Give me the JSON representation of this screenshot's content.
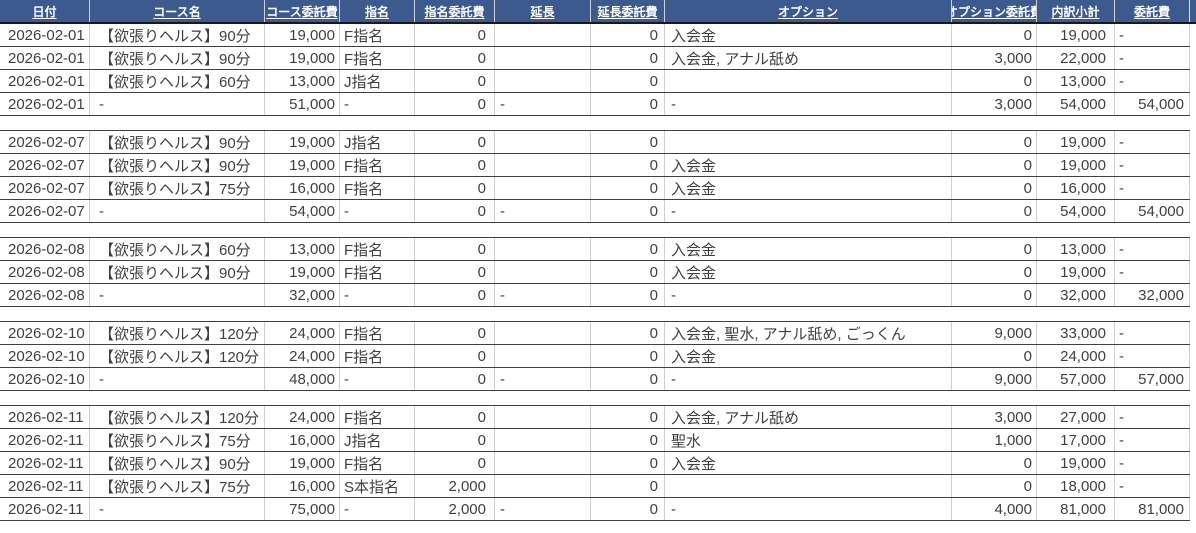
{
  "table": {
    "columns": [
      {
        "key": "date",
        "label": "日付"
      },
      {
        "key": "course-name",
        "label": "コース名"
      },
      {
        "key": "course-fee",
        "label": "コース委託費"
      },
      {
        "key": "nomination",
        "label": "指名"
      },
      {
        "key": "nomination-fee",
        "label": "指名委託費"
      },
      {
        "key": "extension",
        "label": "延長"
      },
      {
        "key": "extension-fee",
        "label": "延長委託費"
      },
      {
        "key": "option",
        "label": "オプション"
      },
      {
        "key": "option-fee",
        "label": "オプション委託費"
      },
      {
        "key": "breakdown-subtotal",
        "label": "内訳小計"
      },
      {
        "key": "commission-fee",
        "label": "委託費"
      }
    ],
    "groups": [
      {
        "rows": [
          [
            "2026-02-01",
            "【欲張りヘルス】90分",
            "19,000",
            "F指名",
            "0",
            "",
            "0",
            "入会金",
            "0",
            "19,000",
            "-"
          ],
          [
            "2026-02-01",
            "【欲張りヘルス】90分",
            "19,000",
            "F指名",
            "0",
            "",
            "0",
            "入会金, アナル舐め",
            "3,000",
            "22,000",
            "-"
          ],
          [
            "2026-02-01",
            "【欲張りヘルス】60分",
            "13,000",
            "J指名",
            "0",
            "",
            "0",
            "",
            "0",
            "13,000",
            "-"
          ]
        ],
        "subtotal": [
          "2026-02-01",
          "-",
          "51,000",
          "-",
          "0",
          "-",
          "0",
          "-",
          "3,000",
          "54,000",
          "54,000"
        ]
      },
      {
        "rows": [
          [
            "2026-02-07",
            "【欲張りヘルス】90分",
            "19,000",
            "J指名",
            "0",
            "",
            "0",
            "",
            "0",
            "19,000",
            "-"
          ],
          [
            "2026-02-07",
            "【欲張りヘルス】90分",
            "19,000",
            "F指名",
            "0",
            "",
            "0",
            "入会金",
            "0",
            "19,000",
            "-"
          ],
          [
            "2026-02-07",
            "【欲張りヘルス】75分",
            "16,000",
            "F指名",
            "0",
            "",
            "0",
            "入会金",
            "0",
            "16,000",
            "-"
          ]
        ],
        "subtotal": [
          "2026-02-07",
          "-",
          "54,000",
          "-",
          "0",
          "-",
          "0",
          "-",
          "0",
          "54,000",
          "54,000"
        ]
      },
      {
        "rows": [
          [
            "2026-02-08",
            "【欲張りヘルス】60分",
            "13,000",
            "F指名",
            "0",
            "",
            "0",
            "入会金",
            "0",
            "13,000",
            "-"
          ],
          [
            "2026-02-08",
            "【欲張りヘルス】90分",
            "19,000",
            "F指名",
            "0",
            "",
            "0",
            "入会金",
            "0",
            "19,000",
            "-"
          ]
        ],
        "subtotal": [
          "2026-02-08",
          "-",
          "32,000",
          "-",
          "0",
          "-",
          "0",
          "-",
          "0",
          "32,000",
          "32,000"
        ]
      },
      {
        "rows": [
          [
            "2026-02-10",
            "【欲張りヘルス】120分",
            "24,000",
            "F指名",
            "0",
            "",
            "0",
            "入会金, 聖水, アナル舐め, ごっくん",
            "9,000",
            "33,000",
            "-"
          ],
          [
            "2026-02-10",
            "【欲張りヘルス】120分",
            "24,000",
            "F指名",
            "0",
            "",
            "0",
            "入会金",
            "0",
            "24,000",
            "-"
          ]
        ],
        "subtotal": [
          "2026-02-10",
          "-",
          "48,000",
          "-",
          "0",
          "-",
          "0",
          "-",
          "9,000",
          "57,000",
          "57,000"
        ]
      },
      {
        "rows": [
          [
            "2026-02-11",
            "【欲張りヘルス】120分",
            "24,000",
            "F指名",
            "0",
            "",
            "0",
            "入会金, アナル舐め",
            "3,000",
            "27,000",
            "-"
          ],
          [
            "2026-02-11",
            "【欲張りヘルス】75分",
            "16,000",
            "J指名",
            "0",
            "",
            "0",
            "聖水",
            "1,000",
            "17,000",
            "-"
          ],
          [
            "2026-02-11",
            "【欲張りヘルス】90分",
            "19,000",
            "F指名",
            "0",
            "",
            "0",
            "入会金",
            "0",
            "19,000",
            "-"
          ],
          [
            "2026-02-11",
            "【欲張りヘルス】75分",
            "16,000",
            "S本指名",
            "2,000",
            "",
            "0",
            "",
            "0",
            "18,000",
            "-"
          ]
        ],
        "subtotal": [
          "2026-02-11",
          "-",
          "75,000",
          "-",
          "2,000",
          "-",
          "0",
          "-",
          "4,000",
          "81,000",
          "81,000"
        ]
      }
    ]
  },
  "colors": {
    "header_bg": "#3d5a8e",
    "header_text": "#ffffff",
    "header_border": "#17171c",
    "row_border": "#404040",
    "gridline": "#cfcfcf",
    "text": "#3f3f3f",
    "background": "#ffffff"
  }
}
